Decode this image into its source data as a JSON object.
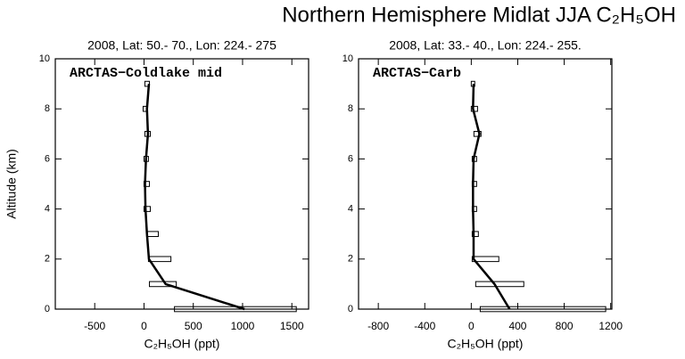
{
  "title": "Northern Hemisphere Midlat JJA C₂H₅OH",
  "chart_data": [
    {
      "type": "profile",
      "subtitle": "2008, Lat:  50.- 70., Lon: 224.- 275",
      "annotation": "ARCTAS−Coldlake mid",
      "xlabel": "C₂H₅OH (ppt)",
      "ylabel": "Altitude (km)",
      "xlim": [
        -900,
        1670
      ],
      "xticks": [
        -500,
        0,
        500,
        1000,
        1500
      ],
      "ylim": [
        0,
        10
      ],
      "yticks": [
        0,
        2,
        4,
        6,
        8,
        10
      ],
      "altitudes": [
        0,
        1,
        2,
        3,
        4,
        5,
        6,
        7,
        8,
        9
      ],
      "values": [
        1020,
        220,
        50,
        30,
        15,
        10,
        20,
        40,
        30,
        50
      ],
      "box_low": [
        309,
        55,
        45,
        27,
        0,
        0,
        0,
        9,
        -9,
        9
      ],
      "box_high": [
        1545,
        327,
        273,
        145,
        64,
        55,
        45,
        64,
        36,
        55
      ],
      "color": "#000000"
    },
    {
      "type": "profile",
      "subtitle": "2008, Lat:  33.- 40., Lon: 224.- 255.",
      "annotation": "ARCTAS−Carb",
      "xlabel": "C₂H₅OH (ppt)",
      "xlim": [
        -970,
        1210
      ],
      "xticks": [
        -800,
        -400,
        0,
        400,
        800,
        1200
      ],
      "ylim": [
        0,
        10
      ],
      "yticks": [
        0,
        2,
        4,
        6,
        8,
        10
      ],
      "altitudes": [
        0,
        1,
        2,
        3,
        4,
        5,
        6,
        7,
        8,
        9
      ],
      "values": [
        330,
        200,
        20,
        20,
        15,
        15,
        20,
        70,
        15,
        20
      ],
      "box_low": [
        77,
        38,
        8,
        8,
        8,
        8,
        8,
        23,
        0,
        0
      ],
      "box_high": [
        1157,
        452,
        237,
        61,
        46,
        46,
        46,
        84,
        54,
        30
      ],
      "color": "#000000"
    }
  ]
}
